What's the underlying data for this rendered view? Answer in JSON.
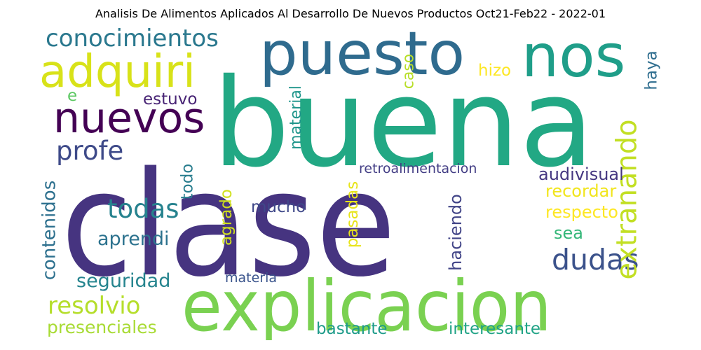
{
  "title": "Analisis De Alimentos Aplicados Al Desarrollo De Nuevos Productos Oct21-Feb22 - 2022-01",
  "words": [
    {
      "text": "clase",
      "color": "#463480"
    },
    {
      "text": "buena",
      "color": "#22A884"
    },
    {
      "text": "explicacion",
      "color": "#7AD151"
    },
    {
      "text": "puesto",
      "color": "#2F6B8E"
    },
    {
      "text": "nos",
      "color": "#1F9E89"
    },
    {
      "text": "adquiri",
      "color": "#D8E219"
    },
    {
      "text": "nuevos",
      "color": "#440154"
    },
    {
      "text": "conocimientos",
      "color": "#2A788E"
    },
    {
      "text": "profe",
      "color": "#3E4A89"
    },
    {
      "text": "todas",
      "color": "#26828E"
    },
    {
      "text": "dudas",
      "color": "#3B528B"
    },
    {
      "text": "extranando",
      "color": "#C2DF23"
    },
    {
      "text": "resolvio",
      "color": "#B5DE2B"
    },
    {
      "text": "presenciales",
      "color": "#A8DB34"
    },
    {
      "text": "seguridad",
      "color": "#25848E"
    },
    {
      "text": "aprendi",
      "color": "#2C728E"
    },
    {
      "text": "contenidos",
      "color": "#2D708E"
    },
    {
      "text": "estuvo",
      "color": "#482475"
    },
    {
      "text": "e",
      "color": "#5DC863"
    },
    {
      "text": "material",
      "color": "#1F958B"
    },
    {
      "text": "caso",
      "color": "#B8DE29"
    },
    {
      "text": "hizo",
      "color": "#FDE725"
    },
    {
      "text": "haya",
      "color": "#2E6D8E"
    },
    {
      "text": "todo",
      "color": "#287D8E"
    },
    {
      "text": "agrado",
      "color": "#D0E11C"
    },
    {
      "text": "pasadas",
      "color": "#E7E419"
    },
    {
      "text": "mucho",
      "color": "#3F4889"
    },
    {
      "text": "materia",
      "color": "#3A548C"
    },
    {
      "text": "retroalimentacion",
      "color": "#433E85"
    },
    {
      "text": "audivisual",
      "color": "#453781"
    },
    {
      "text": "recordar",
      "color": "#F1E51D"
    },
    {
      "text": "respecto",
      "color": "#FDE725"
    },
    {
      "text": "sea",
      "color": "#35B779"
    },
    {
      "text": "haciendo",
      "color": "#414487"
    },
    {
      "text": "bastante",
      "color": "#1E9B8A"
    },
    {
      "text": "interesante",
      "color": "#20A386"
    }
  ]
}
